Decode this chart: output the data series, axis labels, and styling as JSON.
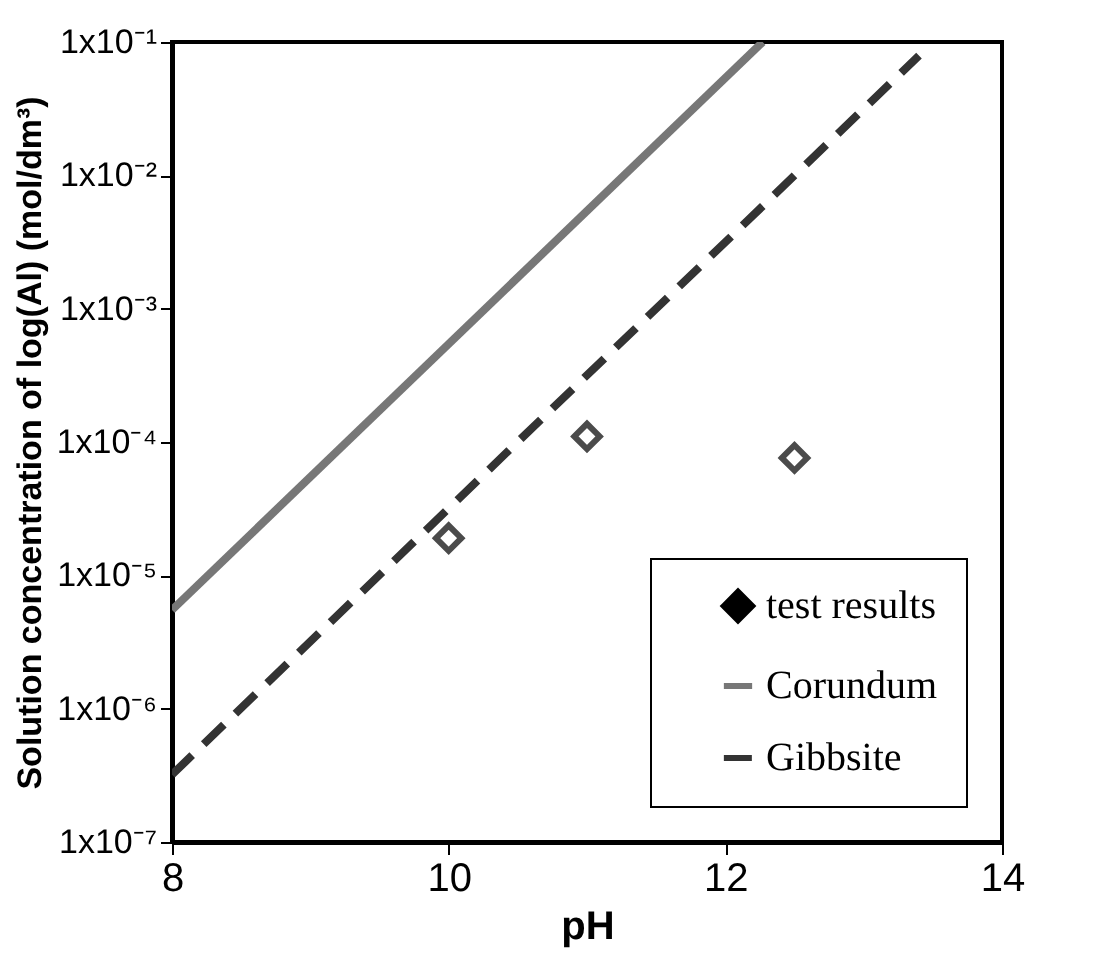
{
  "chart_data": {
    "type": "scatter",
    "xlabel": "pH",
    "ylabel": "Solution concentration of log(Al) (mol/dm³)",
    "xlim": [
      8,
      14
    ],
    "xticks": [
      8,
      10,
      12,
      14
    ],
    "log": "y",
    "ylim": [
      1e-07,
      0.1
    ],
    "yticks": [
      {
        "value": 1e-07,
        "label": "1x10⁻⁷"
      },
      {
        "value": 1e-06,
        "label": "1x10⁻⁶"
      },
      {
        "value": 1e-05,
        "label": "1x10⁻⁵"
      },
      {
        "value": 0.0001,
        "label": "1x10⁻⁴"
      },
      {
        "value": 0.001,
        "label": "1x10⁻³"
      },
      {
        "value": 0.01,
        "label": "1x10⁻²"
      },
      {
        "value": 0.1,
        "label": "1x10⁻¹"
      }
    ],
    "legend": "bottom right",
    "grid": false,
    "series": [
      {
        "name": "test results",
        "marker": "diamond",
        "color": "#000000",
        "x": [
          10,
          11,
          12.5
        ],
        "values": [
          1.9e-05,
          0.00011,
          7.6e-05
        ]
      },
      {
        "name": "Corundum",
        "type": "line",
        "line_style": "solid",
        "color": "#777777",
        "x": [
          8,
          12.27
        ],
        "values": [
          5.5e-06,
          0.1
        ]
      },
      {
        "name": "Gibbsite",
        "type": "line",
        "line_style": "dashed",
        "color": "#333333",
        "x": [
          8,
          13.4
        ],
        "values": [
          3.2e-07,
          0.079
        ]
      }
    ]
  }
}
